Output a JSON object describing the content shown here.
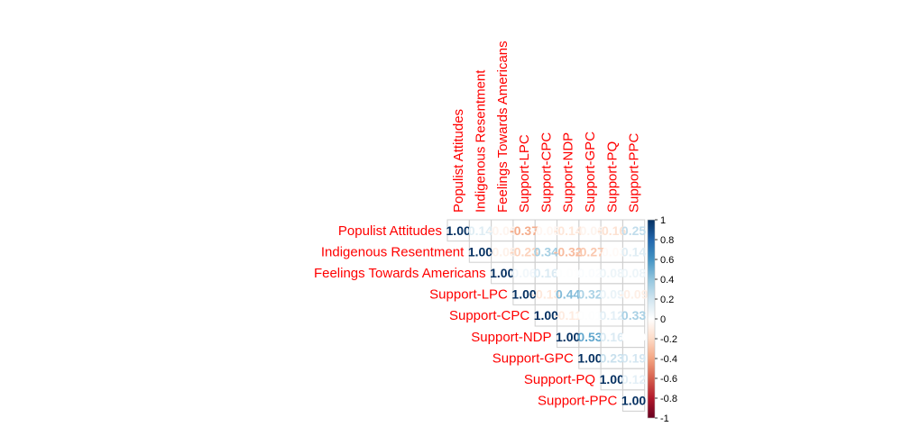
{
  "chart_data": {
    "type": "heatmap",
    "variant": "correlation-matrix-upper",
    "variables": [
      "Populist Attitudes",
      "Indigenous Resentment",
      "Feelings Towards Americans",
      "Support-LPC",
      "Support-CPC",
      "Support-NDP",
      "Support-GPC",
      "Support-PQ",
      "Support-PPC"
    ],
    "matrix": [
      [
        1.0,
        0.14,
        -0.06,
        -0.37,
        -0.05,
        -0.14,
        -0.06,
        -0.16,
        0.25
      ],
      [
        null,
        1.0,
        -0.08,
        -0.23,
        0.34,
        -0.32,
        -0.27,
        -0.03,
        0.14
      ],
      [
        null,
        null,
        1.0,
        0.06,
        0.16,
        0.01,
        0.02,
        0.08,
        0.08
      ],
      [
        null,
        null,
        null,
        1.0,
        -0.13,
        0.44,
        0.32,
        0.09,
        -0.09
      ],
      [
        null,
        null,
        null,
        null,
        1.0,
        -0.11,
        0.01,
        0.12,
        0.33
      ],
      [
        null,
        null,
        null,
        null,
        null,
        1.0,
        0.53,
        0.16,
        0.0
      ],
      [
        null,
        null,
        null,
        null,
        null,
        null,
        1.0,
        0.23,
        0.19
      ],
      [
        null,
        null,
        null,
        null,
        null,
        null,
        null,
        1.0,
        0.12
      ],
      [
        null,
        null,
        null,
        null,
        null,
        null,
        null,
        null,
        1.0
      ]
    ],
    "value_format": "2-decimals",
    "color_scale": {
      "range": [
        -1,
        1
      ],
      "stops": [
        "#67001f",
        "#b2182b",
        "#d6604d",
        "#f4a582",
        "#fddbc7",
        "#ffffff",
        "#d1e5f0",
        "#92c5de",
        "#4393c3",
        "#2166ac",
        "#053061"
      ],
      "ticks": [
        1,
        0.8,
        0.6,
        0.4,
        0.2,
        0,
        -0.2,
        -0.4,
        -0.6,
        -0.8,
        -1
      ],
      "tick_labels": [
        "1",
        "0.8",
        "0.6",
        "0.4",
        "0.2",
        "0",
        "-0.2",
        "-0.4",
        "-0.6",
        "-0.8",
        "-1"
      ]
    },
    "label_color": "#ff0000",
    "legend": "right",
    "grid": true
  }
}
